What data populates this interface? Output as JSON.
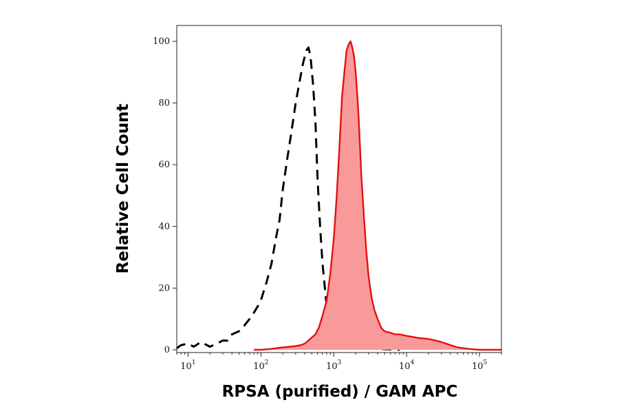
{
  "chart_data": {
    "type": "area",
    "xlabel": "RPSA (purified) / GAM APC",
    "ylabel": "Relative Cell Count",
    "x_scale": "log",
    "xlim": [
      7,
      200000
    ],
    "ylim": [
      0,
      100
    ],
    "x_ticks": [
      {
        "value": 10,
        "base": "10",
        "exp": "1"
      },
      {
        "value": 100,
        "base": "10",
        "exp": "2"
      },
      {
        "value": 1000,
        "base": "10",
        "exp": "3"
      },
      {
        "value": 10000,
        "base": "10",
        "exp": "4"
      },
      {
        "value": 100000,
        "base": "10",
        "exp": "5"
      }
    ],
    "y_ticks": [
      0,
      20,
      40,
      60,
      80,
      100
    ],
    "grid": false,
    "series": [
      {
        "style": "dashed-line",
        "color": "#000000",
        "x": [
          7,
          8,
          10,
          12,
          15,
          20,
          25,
          30,
          35,
          40,
          50,
          60,
          70,
          80,
          90,
          100,
          120,
          140,
          160,
          180,
          200,
          230,
          260,
          300,
          340,
          380,
          420,
          450,
          480,
          520,
          560,
          600,
          650,
          700,
          800,
          900,
          1000,
          1100,
          1300,
          1500,
          1800,
          2000,
          2500,
          3000,
          4000,
          5000,
          8000
        ],
        "values": [
          0.5,
          1.5,
          2,
          1,
          2.5,
          1,
          2,
          3,
          3,
          5,
          6,
          8,
          10,
          12,
          14,
          16,
          22,
          28,
          36,
          42,
          52,
          62,
          70,
          80,
          87,
          93,
          97,
          98,
          95,
          86,
          74,
          55,
          40,
          28,
          14,
          8,
          5,
          3,
          2.5,
          2,
          3,
          1.5,
          1,
          0.5,
          0.3,
          0.2,
          0
        ]
      },
      {
        "style": "filled-area",
        "color": "#e31010",
        "fill": "#f99a9a",
        "x": [
          80,
          100,
          130,
          160,
          200,
          250,
          300,
          350,
          400,
          450,
          500,
          560,
          620,
          700,
          800,
          900,
          1000,
          1100,
          1200,
          1300,
          1400,
          1500,
          1600,
          1700,
          1800,
          1900,
          2000,
          2100,
          2200,
          2300,
          2400,
          2600,
          2800,
          3000,
          3300,
          3600,
          4000,
          4500,
          5000,
          6000,
          7000,
          8000,
          10000,
          12000,
          15000,
          20000,
          25000,
          30000,
          40000,
          50000,
          70000,
          100000,
          200000
        ],
        "values": [
          0,
          0,
          0.2,
          0.5,
          0.8,
          1,
          1.2,
          1.5,
          2,
          3,
          4,
          5,
          7,
          11,
          16,
          25,
          36,
          50,
          66,
          82,
          90,
          97,
          99,
          100,
          98,
          95,
          90,
          83,
          75,
          65,
          56,
          43,
          32,
          24,
          17,
          13,
          10,
          7,
          6,
          5.5,
          5,
          5,
          4.5,
          4.2,
          3.8,
          3.5,
          3,
          2.5,
          1.5,
          0.8,
          0.3,
          0,
          0
        ]
      }
    ]
  }
}
